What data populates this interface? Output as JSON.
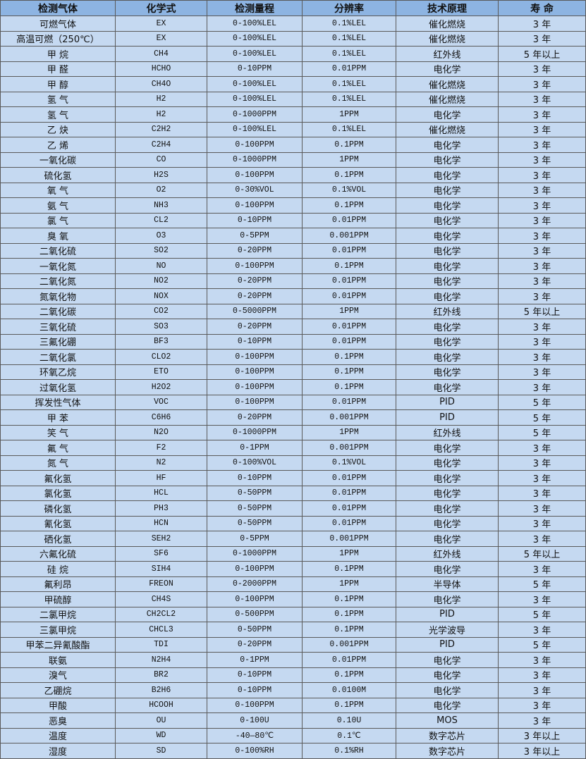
{
  "colors": {
    "header_bg": "#8DB4E2",
    "row_bg": "#C5D9F1",
    "border": "#5a5a5a"
  },
  "headers": [
    "检测气体",
    "化学式",
    "检测量程",
    "分辨率",
    "技术原理",
    "寿 命"
  ],
  "rows": [
    [
      "可燃气体",
      "EX",
      "0-100%LEL",
      "0.1%LEL",
      "催化燃烧",
      "3 年"
    ],
    [
      "高温可燃（250℃）",
      "EX",
      "0-100%LEL",
      "0.1%LEL",
      "催化燃烧",
      "3 年"
    ],
    [
      "甲 烷",
      "CH4",
      "0-100%LEL",
      "0.1%LEL",
      "红外线",
      "5 年以上"
    ],
    [
      "甲 醛",
      "HCHO",
      "0-10PPM",
      "0.01PPM",
      "电化学",
      "3 年"
    ],
    [
      "甲 醇",
      "CH4O",
      "0-100%LEL",
      "0.1%LEL",
      "催化燃烧",
      "3 年"
    ],
    [
      "氢 气",
      "H2",
      "0-100%LEL",
      "0.1%LEL",
      "催化燃烧",
      "3 年"
    ],
    [
      "氢 气",
      "H2",
      "0-1000PPM",
      "1PPM",
      "电化学",
      "3 年"
    ],
    [
      "乙 炔",
      "C2H2",
      "0-100%LEL",
      "0.1%LEL",
      "催化燃烧",
      "3 年"
    ],
    [
      "乙 烯",
      "C2H4",
      "0-100PPM",
      "0.1PPM",
      "电化学",
      "3 年"
    ],
    [
      "一氧化碳",
      "CO",
      "0-1000PPM",
      "1PPM",
      "电化学",
      "3 年"
    ],
    [
      "硫化氢",
      "H2S",
      "0-100PPM",
      "0.1PPM",
      "电化学",
      "3 年"
    ],
    [
      "氧 气",
      "O2",
      "0-30%VOL",
      "0.1%VOL",
      "电化学",
      "3 年"
    ],
    [
      "氨 气",
      "NH3",
      "0-100PPM",
      "0.1PPM",
      "电化学",
      "3 年"
    ],
    [
      "氯 气",
      "CL2",
      "0-10PPM",
      "0.01PPM",
      "电化学",
      "3 年"
    ],
    [
      "臭 氧",
      "O3",
      "0-5PPM",
      "0.001PPM",
      "电化学",
      "3 年"
    ],
    [
      "二氧化硫",
      "SO2",
      "0-20PPM",
      "0.01PPM",
      "电化学",
      "3 年"
    ],
    [
      "一氧化氮",
      "NO",
      "0-100PPM",
      "0.1PPM",
      "电化学",
      "3 年"
    ],
    [
      "二氧化氮",
      "NO2",
      "0-20PPM",
      "0.01PPM",
      "电化学",
      "3 年"
    ],
    [
      "氮氧化物",
      "NOX",
      "0-20PPM",
      "0.01PPM",
      "电化学",
      "3 年"
    ],
    [
      "二氧化碳",
      "CO2",
      "0-5000PPM",
      "1PPM",
      "红外线",
      "5 年以上"
    ],
    [
      "三氧化硫",
      "SO3",
      "0-20PPM",
      "0.01PPM",
      "电化学",
      "3 年"
    ],
    [
      "三氟化硼",
      "BF3",
      "0-10PPM",
      "0.01PPM",
      "电化学",
      "3 年"
    ],
    [
      "二氧化氯",
      "CLO2",
      "0-100PPM",
      "0.1PPM",
      "电化学",
      "3 年"
    ],
    [
      "环氧乙烷",
      "ETO",
      "0-100PPM",
      "0.1PPM",
      "电化学",
      "3 年"
    ],
    [
      "过氧化氢",
      "H2O2",
      "0-100PPM",
      "0.1PPM",
      "电化学",
      "3 年"
    ],
    [
      "挥发性气体",
      "VOC",
      "0-100PPM",
      "0.01PPM",
      "PID",
      "5 年"
    ],
    [
      "甲 苯",
      "C6H6",
      "0-20PPM",
      "0.001PPM",
      "PID",
      "5 年"
    ],
    [
      "笑 气",
      "N2O",
      "0-1000PPM",
      "1PPM",
      "红外线",
      "5 年"
    ],
    [
      "氟 气",
      "F2",
      "0-1PPM",
      "0.001PPM",
      "电化学",
      "3 年"
    ],
    [
      "氮 气",
      "N2",
      "0-100%VOL",
      "0.1%VOL",
      "电化学",
      "3 年"
    ],
    [
      "氟化氢",
      "HF",
      "0-10PPM",
      "0.01PPM",
      "电化学",
      "3 年"
    ],
    [
      "氯化氢",
      "HCL",
      "0-50PPM",
      "0.01PPM",
      "电化学",
      "3 年"
    ],
    [
      "磷化氢",
      "PH3",
      "0-50PPM",
      "0.01PPM",
      "电化学",
      "3 年"
    ],
    [
      "氰化氢",
      "HCN",
      "0-50PPM",
      "0.01PPM",
      "电化学",
      "3 年"
    ],
    [
      "硒化氢",
      "SEH2",
      "0-5PPM",
      "0.001PPM",
      "电化学",
      "3 年"
    ],
    [
      "六氟化硫",
      "SF6",
      "0-1000PPM",
      "1PPM",
      "红外线",
      "5 年以上"
    ],
    [
      "硅 烷",
      "SIH4",
      "0-100PPM",
      "0.1PPM",
      "电化学",
      "3 年"
    ],
    [
      "氟利昂",
      "FREON",
      "0-2000PPM",
      "1PPM",
      "半导体",
      "5 年"
    ],
    [
      "甲硫醇",
      "CH4S",
      "0-100PPM",
      "0.1PPM",
      "电化学",
      "3 年"
    ],
    [
      "二氯甲烷",
      "CH2CL2",
      "0-500PPM",
      "0.1PPM",
      "PID",
      "5 年"
    ],
    [
      "三氯甲烷",
      "CHCL3",
      "0-50PPM",
      "0.1PPM",
      "光学波导",
      "3 年"
    ],
    [
      "甲苯二异氰酸酯",
      "TDI",
      "0-20PPM",
      "0.001PPM",
      "PID",
      "5 年"
    ],
    [
      "联氨",
      "N2H4",
      "0-1PPM",
      "0.01PPM",
      "电化学",
      "3 年"
    ],
    [
      "溴气",
      "BR2",
      "0-10PPM",
      "0.1PPM",
      "电化学",
      "3 年"
    ],
    [
      "乙硼烷",
      "B2H6",
      "0-10PPM",
      "0.0100M",
      "电化学",
      "3 年"
    ],
    [
      "甲酸",
      "HCOOH",
      "0-100PPM",
      "0.1PPM",
      "电化学",
      "3 年"
    ],
    [
      "恶臭",
      "OU",
      "0-100U",
      "0.10U",
      "MOS",
      "3 年"
    ],
    [
      "温度",
      "WD",
      "-40—80℃",
      "0.1℃",
      "数字芯片",
      "3 年以上"
    ],
    [
      "湿度",
      "SD",
      "0-100%RH",
      "0.1%RH",
      "数字芯片",
      "3 年以上"
    ]
  ]
}
